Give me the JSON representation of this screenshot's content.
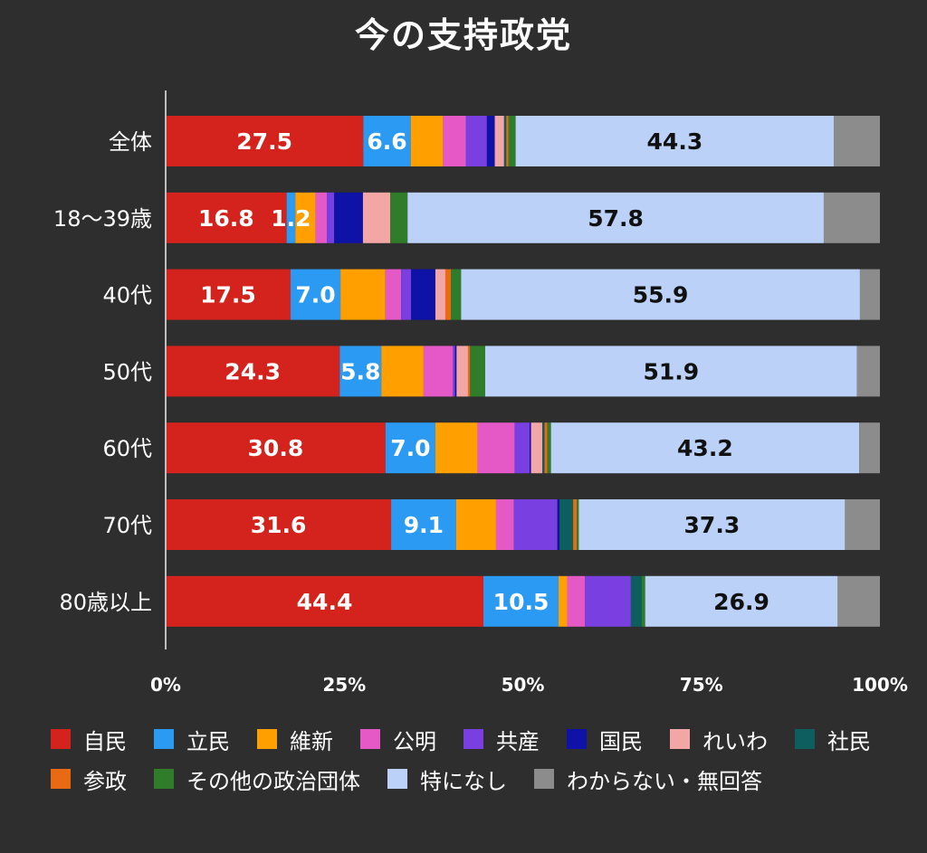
{
  "chart_data": {
    "type": "bar",
    "orientation": "horizontal",
    "stacked": true,
    "percent_stacked": true,
    "title": "今の支持政党",
    "categories": [
      "全体",
      "18〜39歳",
      "40代",
      "50代",
      "60代",
      "70代",
      "80歳以上"
    ],
    "x_ticks": [
      "0%",
      "25%",
      "50%",
      "75%",
      "100%"
    ],
    "xlim": [
      0,
      100
    ],
    "grid": false,
    "legend_position": "bottom",
    "series": [
      {
        "name": "自民",
        "color": "#d4231c",
        "label_color": "#ffffff",
        "values": [
          27.5,
          16.8,
          17.5,
          24.3,
          30.8,
          31.6,
          44.4
        ],
        "labels": [
          "27.5",
          "16.8",
          "17.5",
          "24.3",
          "30.8",
          "31.6",
          "44.4"
        ]
      },
      {
        "name": "立民",
        "color": "#2a9af2",
        "label_color": "#ffffff",
        "values": [
          6.6,
          1.2,
          7.0,
          5.8,
          7.0,
          9.1,
          10.5
        ],
        "labels": [
          "6.6",
          "1.2",
          "7.0",
          "5.8",
          "7.0",
          "9.1",
          "10.5"
        ]
      },
      {
        "name": "維新",
        "color": "#ff9f00",
        "values": [
          4.5,
          2.8,
          6.3,
          5.9,
          5.9,
          5.6,
          1.2
        ]
      },
      {
        "name": "公明",
        "color": "#e459c6",
        "values": [
          3.2,
          1.6,
          2.2,
          4.1,
          5.2,
          2.5,
          2.5
        ]
      },
      {
        "name": "共産",
        "color": "#7a3fe0",
        "values": [
          2.9,
          1.0,
          1.4,
          0.3,
          2.1,
          6.1,
          6.4
        ]
      },
      {
        "name": "国民",
        "color": "#0e12a6",
        "values": [
          1.1,
          4.0,
          3.4,
          0.2,
          0.2,
          0.3,
          0.0
        ]
      },
      {
        "name": "れいわ",
        "color": "#f2a6a6",
        "values": [
          1.3,
          3.8,
          1.4,
          1.6,
          1.6,
          0.0,
          0.0
        ]
      },
      {
        "name": "社民",
        "color": "#0d5e5e",
        "values": [
          0.3,
          0.0,
          0.0,
          0.0,
          0.3,
          1.9,
          1.5
        ]
      },
      {
        "name": "参政",
        "color": "#e86a12",
        "values": [
          0.3,
          0.0,
          0.8,
          0.3,
          0.4,
          0.5,
          0.0
        ]
      },
      {
        "name": "その他の政治団体",
        "color": "#2f7d2a",
        "values": [
          1.0,
          2.4,
          1.4,
          2.1,
          0.5,
          0.3,
          0.5
        ]
      },
      {
        "name": "特になし",
        "color": "#bcd1f8",
        "label_color": "#111111",
        "values": [
          44.3,
          57.8,
          55.9,
          51.9,
          43.2,
          37.3,
          26.9
        ],
        "labels": [
          "44.3",
          "57.8",
          "55.9",
          "51.9",
          "43.2",
          "37.3",
          "26.9"
        ]
      },
      {
        "name": "わからない・無回答",
        "color": "#8c8c8c",
        "values": [
          6.4,
          7.8,
          2.8,
          3.2,
          2.9,
          4.9,
          5.9
        ]
      }
    ]
  }
}
